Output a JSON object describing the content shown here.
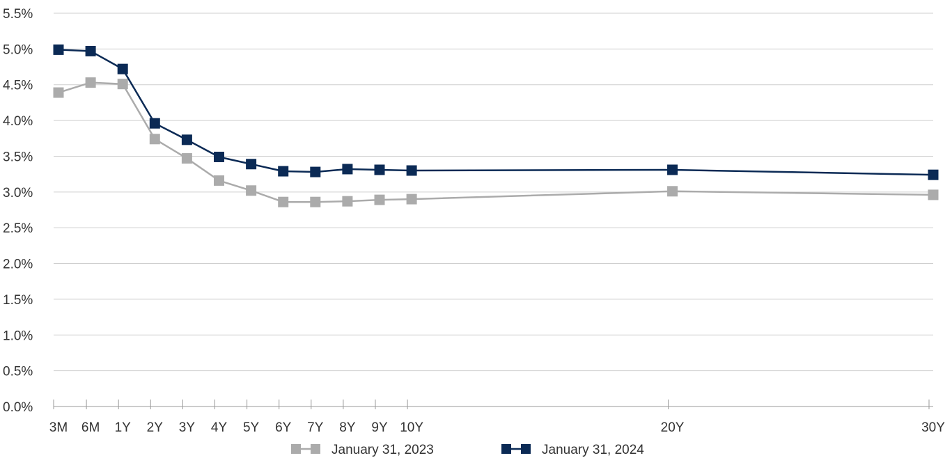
{
  "chart_data": {
    "type": "line",
    "title": "",
    "xlabel": "",
    "ylabel": "",
    "x_scale": "maturity (years)",
    "categories": [
      "3M",
      "6M",
      "1Y",
      "2Y",
      "3Y",
      "4Y",
      "5Y",
      "6Y",
      "7Y",
      "8Y",
      "9Y",
      "10Y",
      "20Y",
      "30Y"
    ],
    "x_years": [
      0.25,
      0.5,
      1,
      2,
      3,
      4,
      5,
      6,
      7,
      8,
      9,
      10,
      20,
      30
    ],
    "ylim": [
      0,
      5.5
    ],
    "y_ticks": [
      "0.0%",
      "0.5%",
      "1.0%",
      "1.5%",
      "2.0%",
      "2.5%",
      "3.0%",
      "3.5%",
      "4.0%",
      "4.5%",
      "5.0%",
      "5.5%"
    ],
    "y_unit": "%",
    "grid": "horizontal",
    "legend_position": "bottom",
    "series": [
      {
        "name": "January 31, 2023",
        "color": "#ababab",
        "marker": "square",
        "values": [
          4.39,
          4.53,
          4.51,
          3.74,
          3.47,
          3.16,
          3.02,
          2.86,
          2.86,
          2.87,
          2.89,
          2.9,
          3.01,
          2.96
        ]
      },
      {
        "name": "January 31, 2024",
        "color": "#0b2a55",
        "marker": "square",
        "values": [
          4.99,
          4.97,
          4.72,
          3.96,
          3.73,
          3.49,
          3.39,
          3.29,
          3.28,
          3.32,
          3.31,
          3.3,
          3.31,
          3.24
        ]
      }
    ]
  }
}
